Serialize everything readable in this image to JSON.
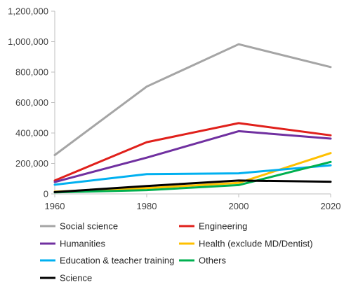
{
  "chart_data": {
    "type": "line",
    "title": "",
    "xlabel": "",
    "ylabel": "",
    "x": [
      1960,
      1980,
      2000,
      2020
    ],
    "xlim": [
      1960,
      2020
    ],
    "ylim": [
      0,
      1200000
    ],
    "y_ticks": [
      "0",
      "200,000",
      "400,000",
      "600,000",
      "800,000",
      "1,000,000",
      "1,200,000"
    ],
    "y_tick_values": [
      0,
      200000,
      400000,
      600000,
      800000,
      1000000,
      1200000
    ],
    "x_ticks": [
      "1960",
      "1980",
      "2000",
      "2020"
    ],
    "grid": false,
    "legend_position": "bottom",
    "series": [
      {
        "name": "Social science",
        "color": "#a5a5a5",
        "values": [
          255000,
          705000,
          983000,
          833000
        ]
      },
      {
        "name": "Engineering",
        "color": "#e0201b",
        "values": [
          88000,
          340000,
          465000,
          385000
        ]
      },
      {
        "name": "Humanities",
        "color": "#7030a0",
        "values": [
          78000,
          238000,
          412000,
          363000
        ]
      },
      {
        "name": "Health (exclude MD/Dentist)",
        "color": "#ffc000",
        "values": [
          15000,
          38000,
          72000,
          268000
        ]
      },
      {
        "name": "Education & teacher training",
        "color": "#00b0f0",
        "values": [
          60000,
          130000,
          135000,
          188000
        ]
      },
      {
        "name": "Others",
        "color": "#00b050",
        "values": [
          10000,
          25000,
          58000,
          210000
        ]
      },
      {
        "name": "Science",
        "color": "#000000",
        "values": [
          12000,
          52000,
          88000,
          80000
        ]
      }
    ]
  }
}
